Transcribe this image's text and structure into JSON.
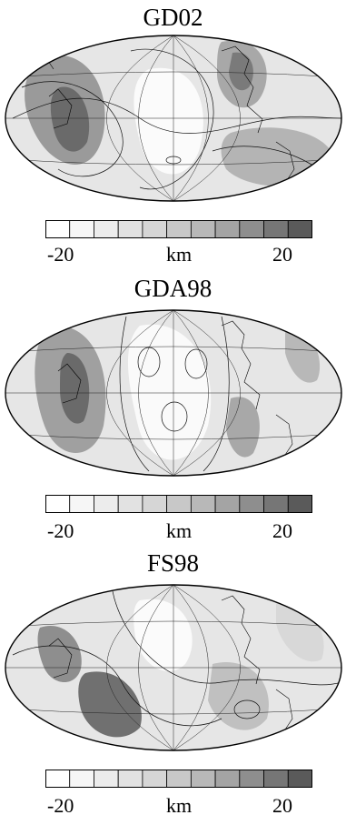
{
  "panels": [
    {
      "title": "GD02",
      "colorbar": {
        "min_label": "-20",
        "unit_label": "km",
        "max_label": "20"
      }
    },
    {
      "title": "GDA98",
      "colorbar": {
        "min_label": "-20",
        "unit_label": "km",
        "max_label": "20"
      }
    },
    {
      "title": "FS98",
      "colorbar": {
        "min_label": "-20",
        "unit_label": "km",
        "max_label": "20"
      }
    }
  ],
  "colorbar_levels": [
    "#ffffff",
    "#f6f6f6",
    "#ececec",
    "#e2e2e2",
    "#d6d6d6",
    "#c8c8c8",
    "#b8b8b8",
    "#a4a4a4",
    "#8e8e8e",
    "#767676",
    "#5a5a5a"
  ],
  "colors": {
    "ellipse_fill": "#e8e8e8",
    "contour": "#111111",
    "dark_anomaly": "#6a6a6a",
    "mid_anomaly": "#b0b0b0",
    "light_anomaly": "#fafafa"
  }
}
